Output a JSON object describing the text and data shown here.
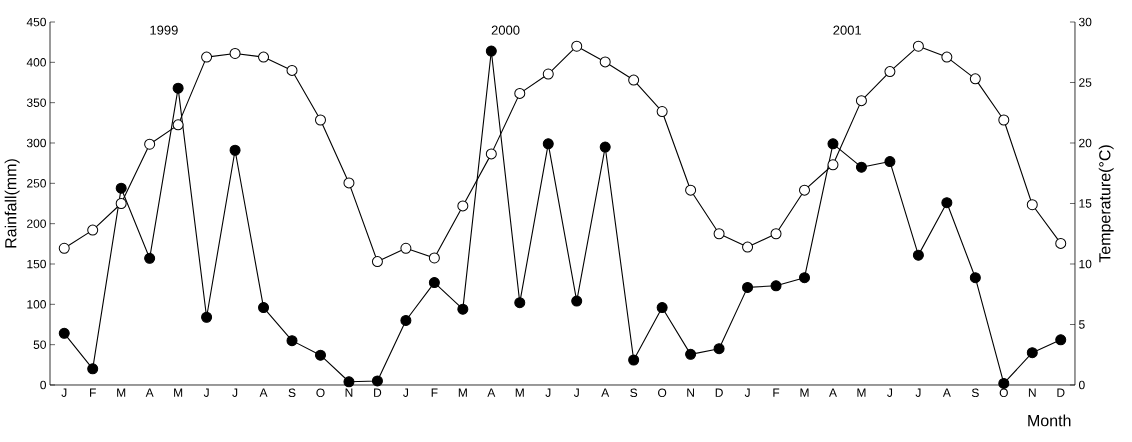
{
  "chart_data": {
    "type": "line",
    "categories": [
      "J",
      "F",
      "M",
      "A",
      "M",
      "J",
      "J",
      "A",
      "S",
      "O",
      "N",
      "D",
      "J",
      "F",
      "M",
      "A",
      "M",
      "J",
      "J",
      "A",
      "S",
      "O",
      "N",
      "D",
      "J",
      "F",
      "M",
      "A",
      "M",
      "J",
      "J",
      "A",
      "S",
      "O",
      "N",
      "D"
    ],
    "xlabel": "Month",
    "ylabel": "Rainfall(mm)",
    "y2label": "Temperature(°C)",
    "annotations": [
      "1999",
      "2000",
      "2001"
    ],
    "ylim": [
      0,
      450
    ],
    "yticks": [
      0,
      50,
      100,
      150,
      200,
      250,
      300,
      350,
      400,
      450
    ],
    "y2lim": [
      0,
      30
    ],
    "y2ticks": [
      0,
      5,
      10,
      15,
      20,
      25,
      30
    ],
    "marker": "circle",
    "line_style": "solid",
    "series": [
      {
        "color": "#000000",
        "axis": "y",
        "values": [
          64,
          20,
          244,
          157,
          368,
          84,
          291,
          96,
          55,
          37,
          4,
          5,
          80,
          127,
          94,
          414,
          102,
          299,
          104,
          295,
          31,
          96,
          38,
          45,
          121,
          123,
          133,
          299,
          270,
          277,
          161,
          226,
          133,
          2,
          40,
          56
        ]
      },
      {
        "color": "#000000",
        "axis": "y2",
        "values": [
          11.3,
          12.8,
          15,
          19.9,
          21.5,
          27.1,
          27.4,
          27.1,
          26,
          21.9,
          16.7,
          10.2,
          11.3,
          10.5,
          14.8,
          19.1,
          24.1,
          25.7,
          28,
          26.7,
          25.2,
          22.6,
          16.1,
          12.5,
          11.4,
          12.5,
          16.1,
          18.2,
          23.5,
          25.9,
          28,
          27.1,
          25.3,
          21.9,
          14.9,
          11.7
        ]
      }
    ]
  }
}
